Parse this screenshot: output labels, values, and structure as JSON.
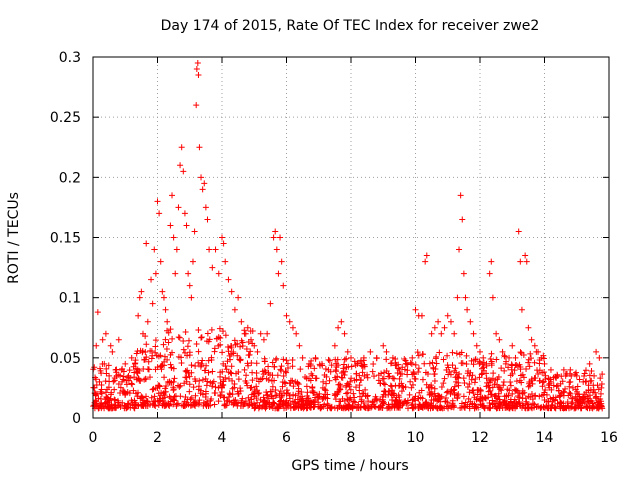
{
  "chart_data": {
    "type": "scatter",
    "title": "Day 174 of 2015, Rate Of TEC Index for receiver zwe2",
    "xlabel": "GPS time / hours",
    "ylabel": "ROTI / TECUs",
    "xlim": [
      0,
      16
    ],
    "ylim": [
      0,
      0.3
    ],
    "xticks": [
      "0",
      "2",
      "4",
      "6",
      "8",
      "10",
      "12",
      "14",
      "16"
    ],
    "xtick_values": [
      0,
      2,
      4,
      6,
      8,
      10,
      12,
      14,
      16
    ],
    "yticks": [
      "0",
      "0.05",
      "0.1",
      "0.15",
      "0.2",
      "0.25",
      "0.3"
    ],
    "ytick_values": [
      0,
      0.05,
      0.1,
      0.15,
      0.2,
      0.25,
      0.3
    ],
    "grid": true,
    "marker": "plus",
    "color": "#ff0000",
    "series": [
      {
        "name": "ROTI",
        "points": [
          [
            0.05,
            0.025
          ],
          [
            0.1,
            0.06
          ],
          [
            0.12,
            0.02
          ],
          [
            0.15,
            0.088
          ],
          [
            0.2,
            0.03
          ],
          [
            0.3,
            0.065
          ],
          [
            0.35,
            0.045
          ],
          [
            0.4,
            0.07
          ],
          [
            0.5,
            0.035
          ],
          [
            0.55,
            0.06
          ],
          [
            0.6,
            0.055
          ],
          [
            0.7,
            0.04
          ],
          [
            0.8,
            0.065
          ],
          [
            0.9,
            0.03
          ],
          [
            1.0,
            0.045
          ],
          [
            1.1,
            0.035
          ],
          [
            1.2,
            0.05
          ],
          [
            1.3,
            0.045
          ],
          [
            1.4,
            0.085
          ],
          [
            1.45,
            0.1
          ],
          [
            1.5,
            0.105
          ],
          [
            1.55,
            0.07
          ],
          [
            1.65,
            0.145
          ],
          [
            1.7,
            0.08
          ],
          [
            1.8,
            0.115
          ],
          [
            1.85,
            0.095
          ],
          [
            1.9,
            0.14
          ],
          [
            1.95,
            0.12
          ],
          [
            2.0,
            0.18
          ],
          [
            2.05,
            0.17
          ],
          [
            2.1,
            0.13
          ],
          [
            2.15,
            0.105
          ],
          [
            2.2,
            0.1
          ],
          [
            2.25,
            0.09
          ],
          [
            2.3,
            0.08
          ],
          [
            2.4,
            0.16
          ],
          [
            2.45,
            0.185
          ],
          [
            2.5,
            0.15
          ],
          [
            2.55,
            0.12
          ],
          [
            2.6,
            0.14
          ],
          [
            2.65,
            0.175
          ],
          [
            2.7,
            0.21
          ],
          [
            2.75,
            0.225
          ],
          [
            2.8,
            0.205
          ],
          [
            2.85,
            0.17
          ],
          [
            2.9,
            0.16
          ],
          [
            2.95,
            0.12
          ],
          [
            3.0,
            0.11
          ],
          [
            3.05,
            0.1
          ],
          [
            3.1,
            0.13
          ],
          [
            3.15,
            0.155
          ],
          [
            3.2,
            0.26
          ],
          [
            3.22,
            0.29
          ],
          [
            3.25,
            0.295
          ],
          [
            3.27,
            0.285
          ],
          [
            3.3,
            0.225
          ],
          [
            3.35,
            0.2
          ],
          [
            3.4,
            0.19
          ],
          [
            3.45,
            0.195
          ],
          [
            3.5,
            0.175
          ],
          [
            3.55,
            0.165
          ],
          [
            3.6,
            0.14
          ],
          [
            3.7,
            0.125
          ],
          [
            3.8,
            0.14
          ],
          [
            3.9,
            0.12
          ],
          [
            4.0,
            0.15
          ],
          [
            4.05,
            0.145
          ],
          [
            4.1,
            0.13
          ],
          [
            4.2,
            0.115
          ],
          [
            4.3,
            0.105
          ],
          [
            4.4,
            0.09
          ],
          [
            4.5,
            0.1
          ],
          [
            4.6,
            0.08
          ],
          [
            4.7,
            0.07
          ],
          [
            4.8,
            0.075
          ],
          [
            4.9,
            0.065
          ],
          [
            5.0,
            0.06
          ],
          [
            5.1,
            0.055
          ],
          [
            5.2,
            0.07
          ],
          [
            5.3,
            0.065
          ],
          [
            5.4,
            0.07
          ],
          [
            5.5,
            0.095
          ],
          [
            5.6,
            0.15
          ],
          [
            5.65,
            0.155
          ],
          [
            5.7,
            0.14
          ],
          [
            5.75,
            0.12
          ],
          [
            5.8,
            0.15
          ],
          [
            5.85,
            0.13
          ],
          [
            5.9,
            0.11
          ],
          [
            6.0,
            0.085
          ],
          [
            6.1,
            0.08
          ],
          [
            6.2,
            0.075
          ],
          [
            6.3,
            0.07
          ],
          [
            6.4,
            0.06
          ],
          [
            6.5,
            0.05
          ],
          [
            6.7,
            0.045
          ],
          [
            6.9,
            0.05
          ],
          [
            7.1,
            0.045
          ],
          [
            7.3,
            0.04
          ],
          [
            7.5,
            0.06
          ],
          [
            7.6,
            0.075
          ],
          [
            7.7,
            0.08
          ],
          [
            7.8,
            0.07
          ],
          [
            7.9,
            0.055
          ],
          [
            8.0,
            0.05
          ],
          [
            8.2,
            0.045
          ],
          [
            8.4,
            0.05
          ],
          [
            8.6,
            0.055
          ],
          [
            8.8,
            0.05
          ],
          [
            9.0,
            0.06
          ],
          [
            9.1,
            0.055
          ],
          [
            9.3,
            0.05
          ],
          [
            9.5,
            0.04
          ],
          [
            9.7,
            0.045
          ],
          [
            9.9,
            0.05
          ],
          [
            10.0,
            0.09
          ],
          [
            10.1,
            0.085
          ],
          [
            10.2,
            0.085
          ],
          [
            10.3,
            0.13
          ],
          [
            10.35,
            0.135
          ],
          [
            10.5,
            0.07
          ],
          [
            10.6,
            0.075
          ],
          [
            10.7,
            0.08
          ],
          [
            10.8,
            0.07
          ],
          [
            10.9,
            0.075
          ],
          [
            11.0,
            0.085
          ],
          [
            11.1,
            0.08
          ],
          [
            11.2,
            0.07
          ],
          [
            11.3,
            0.1
          ],
          [
            11.35,
            0.14
          ],
          [
            11.4,
            0.185
          ],
          [
            11.45,
            0.165
          ],
          [
            11.5,
            0.12
          ],
          [
            11.55,
            0.1
          ],
          [
            11.6,
            0.09
          ],
          [
            11.7,
            0.08
          ],
          [
            11.8,
            0.07
          ],
          [
            11.9,
            0.06
          ],
          [
            12.0,
            0.055
          ],
          [
            12.1,
            0.05
          ],
          [
            12.2,
            0.045
          ],
          [
            12.3,
            0.12
          ],
          [
            12.35,
            0.13
          ],
          [
            12.4,
            0.1
          ],
          [
            12.5,
            0.07
          ],
          [
            12.6,
            0.065
          ],
          [
            12.7,
            0.055
          ],
          [
            12.8,
            0.045
          ],
          [
            12.9,
            0.05
          ],
          [
            13.0,
            0.06
          ],
          [
            13.1,
            0.05
          ],
          [
            13.2,
            0.155
          ],
          [
            13.25,
            0.13
          ],
          [
            13.3,
            0.09
          ],
          [
            13.4,
            0.135
          ],
          [
            13.45,
            0.13
          ],
          [
            13.5,
            0.075
          ],
          [
            13.6,
            0.065
          ],
          [
            13.7,
            0.06
          ],
          [
            13.8,
            0.055
          ],
          [
            13.9,
            0.05
          ],
          [
            14.0,
            0.045
          ],
          [
            14.2,
            0.04
          ],
          [
            14.4,
            0.035
          ],
          [
            14.6,
            0.04
          ],
          [
            14.8,
            0.03
          ],
          [
            15.0,
            0.035
          ],
          [
            15.2,
            0.03
          ],
          [
            15.4,
            0.045
          ],
          [
            15.6,
            0.055
          ],
          [
            15.7,
            0.05
          ],
          [
            15.75,
            0.02
          ],
          [
            0.1,
            0.012
          ],
          [
            0.5,
            0.015
          ],
          [
            1.0,
            0.02
          ],
          [
            1.5,
            0.018
          ],
          [
            2.0,
            0.025
          ],
          [
            2.5,
            0.03
          ],
          [
            3.0,
            0.028
          ],
          [
            3.5,
            0.022
          ],
          [
            4.0,
            0.025
          ],
          [
            4.5,
            0.02
          ],
          [
            5.0,
            0.018
          ],
          [
            5.5,
            0.022
          ],
          [
            6.0,
            0.02
          ],
          [
            6.5,
            0.015
          ],
          [
            7.0,
            0.018
          ],
          [
            7.5,
            0.02
          ],
          [
            8.0,
            0.015
          ],
          [
            8.5,
            0.018
          ],
          [
            9.0,
            0.012
          ],
          [
            9.5,
            0.015
          ],
          [
            10.0,
            0.018
          ],
          [
            10.5,
            0.02
          ],
          [
            11.0,
            0.022
          ],
          [
            11.5,
            0.018
          ],
          [
            12.0,
            0.015
          ],
          [
            12.5,
            0.018
          ],
          [
            13.0,
            0.02
          ],
          [
            13.5,
            0.018
          ],
          [
            14.0,
            0.015
          ],
          [
            14.5,
            0.012
          ],
          [
            15.0,
            0.015
          ],
          [
            15.5,
            0.012
          ]
        ]
      }
    ],
    "background_density": {
      "description": "dense band of markers",
      "segments": [
        {
          "x0": 0.0,
          "x1": 1.3,
          "ymin": 0.008,
          "ymax": 0.045
        },
        {
          "x0": 1.3,
          "x1": 5.0,
          "ymin": 0.01,
          "ymax": 0.075
        },
        {
          "x0": 5.0,
          "x1": 10.0,
          "ymin": 0.008,
          "ymax": 0.05
        },
        {
          "x0": 10.0,
          "x1": 14.0,
          "ymin": 0.008,
          "ymax": 0.055
        },
        {
          "x0": 14.0,
          "x1": 15.8,
          "ymin": 0.008,
          "ymax": 0.04
        }
      ],
      "count": 1800,
      "seed": 17402015
    }
  }
}
